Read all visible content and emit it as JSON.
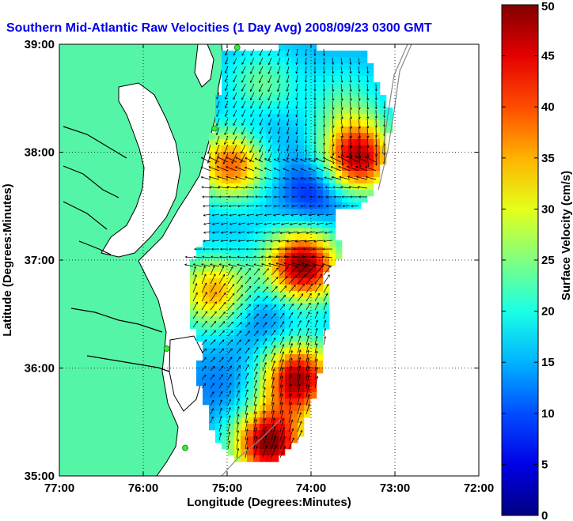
{
  "chart_data": {
    "type": "heatmap",
    "title": "Southern Mid-Atlantic Raw Velocities (1 Day Avg) 2008/09/23 0300 GMT",
    "xlabel": "Longitude (Degrees:Minutes)",
    "ylabel": "Latitude (Degrees:Minutes)",
    "x_ticks": [
      "77:00",
      "76:00",
      "75:00",
      "74:00",
      "73:00",
      "72:00"
    ],
    "x_tick_values": [
      -77,
      -76,
      -75,
      -74,
      -73,
      -72
    ],
    "y_ticks": [
      "39:00",
      "38:00",
      "37:00",
      "36:00",
      "35:00"
    ],
    "y_tick_values": [
      39,
      38,
      37,
      36,
      35
    ],
    "xlim": [
      -77,
      -72
    ],
    "ylim": [
      35,
      39
    ],
    "grid": true,
    "colorbar": {
      "label": "Surface Velocity (cm/s)",
      "min": 0,
      "max": 50,
      "ticks": [
        0,
        5,
        10,
        15,
        20,
        25,
        30,
        35,
        40,
        45,
        50
      ],
      "colormap": "jet"
    },
    "hot_spots": [
      {
        "lon": -74.1,
        "lat": 36.95,
        "speed": 50
      },
      {
        "lon": -74.5,
        "lat": 35.3,
        "speed": 50
      },
      {
        "lon": -74.15,
        "lat": 35.9,
        "speed": 48
      },
      {
        "lon": -73.45,
        "lat": 37.95,
        "speed": 48
      },
      {
        "lon": -74.95,
        "lat": 37.9,
        "speed": 40
      },
      {
        "lon": -75.15,
        "lat": 36.7,
        "speed": 36
      },
      {
        "lon": -74.6,
        "lat": 38.6,
        "speed": 25
      },
      {
        "lon": -73.6,
        "lat": 38.45,
        "speed": 22
      }
    ],
    "calm_spots": [
      {
        "lon": -73.95,
        "lat": 37.65,
        "speed": 6
      },
      {
        "lon": -74.6,
        "lat": 36.5,
        "speed": 10
      },
      {
        "lon": -75.05,
        "lat": 35.8,
        "speed": 12
      },
      {
        "lon": -74.7,
        "lat": 38.25,
        "speed": 10
      }
    ],
    "stations": [
      {
        "lon": -74.88,
        "lat": 38.97
      },
      {
        "lon": -75.15,
        "lat": 38.22
      },
      {
        "lon": -75.72,
        "lat": 36.18
      },
      {
        "lon": -75.5,
        "lat": 35.26
      }
    ]
  },
  "colors": {
    "land": "#55f5a8",
    "title": "#0000ee",
    "station": "#33ee33"
  }
}
